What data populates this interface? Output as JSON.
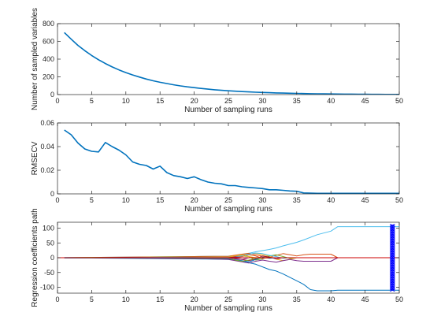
{
  "colors": {
    "primary": "#0072bd",
    "secondary": "#d95319",
    "background": "#ffffff",
    "axis": "#262626",
    "best_marker": "#0000ff",
    "zero_line": "#cc0000"
  },
  "chart_data": [
    {
      "type": "line",
      "xlabel": "Number of sampling runs",
      "ylabel": "Number of sampled variables",
      "xlim": [
        0,
        50
      ],
      "ylim": [
        0,
        800
      ],
      "xticks": [
        0,
        5,
        10,
        15,
        20,
        25,
        30,
        35,
        40,
        45,
        50
      ],
      "yticks": [
        0,
        200,
        400,
        600,
        800
      ],
      "grid": false,
      "series": [
        {
          "color": "#0072bd",
          "x": [
            1,
            2,
            3,
            4,
            5,
            6,
            7,
            8,
            9,
            10,
            11,
            12,
            13,
            14,
            15,
            16,
            17,
            18,
            19,
            20,
            21,
            22,
            23,
            24,
            25,
            26,
            27,
            28,
            29,
            30,
            31,
            32,
            33,
            34,
            35,
            36,
            37,
            38,
            39,
            40,
            41,
            42,
            43,
            44,
            45,
            46,
            47,
            48,
            49,
            50
          ],
          "y": [
            700,
            625,
            555,
            495,
            441,
            393,
            350,
            312,
            278,
            248,
            221,
            197,
            175,
            156,
            139,
            124,
            110,
            98,
            87,
            78,
            69,
            61,
            54,
            48,
            43,
            38,
            34,
            30,
            27,
            24,
            21,
            19,
            17,
            15,
            13,
            12,
            10,
            9,
            8,
            7,
            6,
            5,
            5,
            4,
            4,
            3,
            3,
            2,
            2,
            2
          ]
        }
      ]
    },
    {
      "type": "line",
      "xlabel": "Number of sampling runs",
      "ylabel": "RMSECV",
      "xlim": [
        0,
        50
      ],
      "ylim": [
        0,
        0.06
      ],
      "xticks": [
        0,
        5,
        10,
        15,
        20,
        25,
        30,
        35,
        40,
        45,
        50
      ],
      "yticks": [
        "0",
        "0.02",
        "0.04",
        "0.06"
      ],
      "grid": false,
      "series": [
        {
          "color": "#0072bd",
          "x": [
            1,
            2,
            3,
            4,
            5,
            6,
            7,
            8,
            9,
            10,
            11,
            12,
            13,
            14,
            15,
            16,
            17,
            18,
            19,
            20,
            21,
            22,
            23,
            24,
            25,
            26,
            27,
            28,
            29,
            30,
            31,
            32,
            33,
            34,
            35,
            36,
            37,
            38,
            39,
            40,
            41,
            42,
            43,
            44,
            45,
            46,
            47,
            48,
            49,
            50
          ],
          "y": [
            0.054,
            0.05,
            0.043,
            0.038,
            0.036,
            0.0355,
            0.0435,
            0.04,
            0.037,
            0.033,
            0.027,
            0.025,
            0.024,
            0.021,
            0.0235,
            0.018,
            0.0155,
            0.0145,
            0.013,
            0.0145,
            0.012,
            0.01,
            0.009,
            0.0085,
            0.007,
            0.007,
            0.006,
            0.0055,
            0.005,
            0.0045,
            0.0035,
            0.0035,
            0.003,
            0.0025,
            0.0022,
            0.0008,
            0.0006,
            0.0005,
            0.0005,
            0.0005,
            0.0005,
            0.0005,
            0.0005,
            0.0005,
            0.0005,
            0.0005,
            0.0005,
            0.0005,
            0.0005,
            0.0005
          ]
        }
      ]
    },
    {
      "type": "line",
      "xlabel": "Number of sampling runs",
      "ylabel": "Regression coefficients path",
      "xlim": [
        0,
        50
      ],
      "ylim": [
        -120,
        120
      ],
      "xticks": [
        0,
        5,
        10,
        15,
        20,
        25,
        30,
        35,
        40,
        45,
        50
      ],
      "yticks": [
        -100,
        -50,
        0,
        50,
        100
      ],
      "grid": false,
      "best_run": 49,
      "series": [
        {
          "color": "#4dbeee",
          "x": [
            1,
            5,
            10,
            15,
            20,
            25,
            27,
            29,
            31,
            32,
            33,
            35,
            36,
            38,
            40,
            41,
            42,
            44,
            46,
            48,
            49,
            50
          ],
          "y": [
            1,
            1,
            2,
            3,
            4,
            5,
            10,
            20,
            28,
            33,
            40,
            52,
            60,
            78,
            90,
            105,
            105,
            105,
            105,
            105,
            105,
            105
          ]
        },
        {
          "color": "#0072bd",
          "x": [
            1,
            5,
            10,
            15,
            20,
            25,
            27,
            29,
            31,
            32,
            33,
            35,
            36,
            37,
            38,
            40,
            41,
            42,
            44,
            46,
            48,
            49,
            50
          ],
          "y": [
            -1,
            -1,
            -2,
            -3,
            -4,
            -5,
            -12,
            -22,
            -40,
            -45,
            -55,
            -78,
            -90,
            -108,
            -112,
            -112,
            -110,
            -110,
            -110,
            -110,
            -110,
            -110,
            -110
          ]
        },
        {
          "color": "#d95319",
          "x": [
            1,
            5,
            10,
            15,
            20,
            25,
            27,
            28,
            29,
            30,
            31,
            32,
            33,
            34,
            35,
            36,
            37,
            38,
            39,
            40,
            41
          ],
          "y": [
            0,
            1,
            2,
            3,
            4,
            5,
            12,
            15,
            10,
            5,
            2,
            8,
            14,
            10,
            6,
            10,
            12,
            12,
            12,
            12,
            0
          ]
        },
        {
          "color": "#edb120",
          "x": [
            1,
            5,
            10,
            15,
            20,
            25,
            27,
            28,
            29,
            30,
            31,
            32,
            33,
            34,
            35,
            36
          ],
          "y": [
            0,
            0,
            1,
            2,
            3,
            4,
            8,
            12,
            15,
            10,
            5,
            -5,
            -10,
            -5,
            0,
            0
          ]
        },
        {
          "color": "#7e2f8e",
          "x": [
            1,
            5,
            10,
            15,
            20,
            25,
            27,
            28,
            29,
            30,
            31,
            32,
            33,
            34,
            35,
            36,
            37,
            38,
            40,
            41
          ],
          "y": [
            0,
            0,
            -1,
            -2,
            -3,
            -6,
            -14,
            -18,
            -12,
            -8,
            -12,
            -15,
            -10,
            -6,
            -10,
            -12,
            -12,
            -12,
            -12,
            0
          ]
        },
        {
          "color": "#77ac30",
          "x": [
            1,
            5,
            10,
            15,
            20,
            25,
            27,
            28,
            29,
            30,
            31,
            32,
            33,
            34,
            35
          ],
          "y": [
            0,
            1,
            1,
            2,
            2,
            3,
            6,
            4,
            -8,
            -4,
            6,
            10,
            4,
            -2,
            0
          ]
        },
        {
          "color": "#a2142f",
          "x": [
            1,
            5,
            10,
            15,
            20,
            25,
            27,
            28,
            29,
            30,
            31,
            32,
            33
          ],
          "y": [
            0,
            0,
            1,
            1,
            2,
            2,
            -6,
            -10,
            -4,
            6,
            2,
            -4,
            0
          ]
        },
        {
          "color": "#0072bd",
          "x": [
            1,
            5,
            10,
            15,
            20,
            25,
            27,
            28,
            29,
            30,
            31,
            32
          ],
          "y": [
            0,
            0,
            -1,
            -1,
            -2,
            -4,
            -10,
            -14,
            -6,
            2,
            -2,
            0
          ]
        },
        {
          "color": "#d95319",
          "x": [
            1,
            5,
            10,
            15,
            20,
            25,
            27,
            28,
            29,
            30,
            31
          ],
          "y": [
            0,
            0,
            0,
            1,
            1,
            3,
            4,
            10,
            6,
            -2,
            0
          ]
        },
        {
          "color": "#4dbeee",
          "x": [
            1,
            5,
            10,
            15,
            20,
            25,
            27,
            28,
            29,
            30,
            31,
            32,
            33,
            34
          ],
          "y": [
            0,
            0,
            0,
            1,
            1,
            2,
            6,
            12,
            16,
            14,
            8,
            4,
            -2,
            0
          ]
        },
        {
          "color": "#77ac30",
          "x": [
            1,
            5,
            10,
            15,
            20,
            25,
            26,
            27,
            28,
            29,
            30
          ],
          "y": [
            0,
            0,
            0,
            0,
            -1,
            -2,
            -8,
            -12,
            -8,
            -2,
            0
          ]
        },
        {
          "color": "#edb120",
          "x": [
            1,
            5,
            10,
            15,
            20,
            25,
            26,
            27,
            28,
            29
          ],
          "y": [
            0,
            0,
            0,
            0,
            0,
            1,
            6,
            10,
            4,
            0
          ]
        },
        {
          "color": "#7e2f8e",
          "x": [
            1,
            5,
            10,
            15,
            20,
            25,
            26,
            27,
            28
          ],
          "y": [
            0,
            0,
            0,
            0,
            0,
            -1,
            -4,
            -6,
            0
          ]
        },
        {
          "color": "#a2142f",
          "x": [
            1,
            5,
            10,
            15,
            20,
            25,
            26,
            27
          ],
          "y": [
            0,
            0,
            0,
            0,
            0,
            0,
            3,
            0
          ]
        },
        {
          "color": "#cc0000",
          "x": [
            0,
            50
          ],
          "y": [
            0,
            0
          ]
        }
      ]
    }
  ]
}
